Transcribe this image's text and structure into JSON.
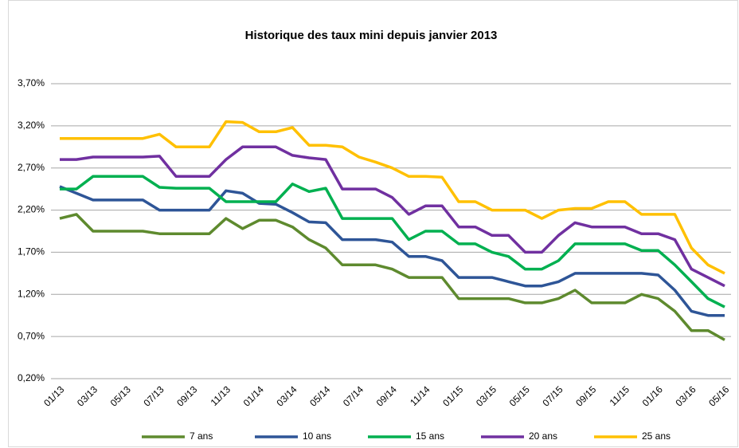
{
  "chart_data": {
    "type": "line",
    "title": "Historique des taux mini depuis janvier 2013",
    "categories": [
      "01/13",
      null,
      "03/13",
      null,
      "05/13",
      null,
      "07/13",
      null,
      "09/13",
      null,
      "11/13",
      null,
      "01/14",
      null,
      "03/14",
      null,
      "05/14",
      null,
      "07/14",
      null,
      "09/14",
      null,
      "11/14",
      null,
      "01/15",
      null,
      "03/15",
      null,
      "05/15",
      null,
      "07/15",
      null,
      "09/15",
      null,
      "11/15",
      null,
      "01/16",
      null,
      "03/16",
      null,
      "05/16"
    ],
    "series": [
      {
        "name": "7 ans",
        "color": "#5e8a2e",
        "values": [
          2.1,
          2.15,
          1.95,
          1.95,
          1.95,
          1.95,
          1.92,
          1.92,
          1.92,
          1.92,
          2.1,
          1.98,
          2.08,
          2.08,
          2.0,
          1.85,
          1.75,
          1.55,
          1.55,
          1.55,
          1.5,
          1.4,
          1.4,
          1.4,
          1.15,
          1.15,
          1.15,
          1.15,
          1.1,
          1.1,
          1.15,
          1.25,
          1.1,
          1.1,
          1.1,
          1.2,
          1.15,
          1.0,
          0.77,
          0.77,
          0.66
        ]
      },
      {
        "name": "10 ans",
        "color": "#2e5597",
        "values": [
          2.48,
          2.4,
          2.32,
          2.32,
          2.32,
          2.32,
          2.2,
          2.2,
          2.2,
          2.2,
          2.43,
          2.4,
          2.28,
          2.27,
          2.17,
          2.06,
          2.05,
          1.85,
          1.85,
          1.85,
          1.82,
          1.65,
          1.65,
          1.6,
          1.4,
          1.4,
          1.4,
          1.35,
          1.3,
          1.3,
          1.35,
          1.45,
          1.45,
          1.45,
          1.45,
          1.45,
          1.43,
          1.25,
          1.0,
          0.95,
          0.95
        ]
      },
      {
        "name": "15 ans",
        "color": "#00b050",
        "values": [
          2.45,
          2.45,
          2.6,
          2.6,
          2.6,
          2.6,
          2.47,
          2.46,
          2.46,
          2.46,
          2.3,
          2.3,
          2.3,
          2.3,
          2.51,
          2.42,
          2.46,
          2.1,
          2.1,
          2.1,
          2.1,
          1.85,
          1.95,
          1.95,
          1.8,
          1.8,
          1.7,
          1.65,
          1.5,
          1.5,
          1.6,
          1.8,
          1.8,
          1.8,
          1.8,
          1.72,
          1.72,
          1.55,
          1.35,
          1.15,
          1.05
        ]
      },
      {
        "name": "20 ans",
        "color": "#7030a0",
        "values": [
          2.8,
          2.8,
          2.83,
          2.83,
          2.83,
          2.83,
          2.84,
          2.6,
          2.6,
          2.6,
          2.8,
          2.95,
          2.95,
          2.95,
          2.85,
          2.82,
          2.8,
          2.45,
          2.45,
          2.45,
          2.35,
          2.15,
          2.25,
          2.25,
          2.0,
          2.0,
          1.9,
          1.9,
          1.7,
          1.7,
          1.9,
          2.05,
          2.0,
          2.0,
          2.0,
          1.92,
          1.92,
          1.85,
          1.5,
          1.4,
          1.3
        ]
      },
      {
        "name": "25 ans",
        "color": "#ffc000",
        "values": [
          3.05,
          3.05,
          3.05,
          3.05,
          3.05,
          3.05,
          3.1,
          2.95,
          2.95,
          2.95,
          3.25,
          3.24,
          3.13,
          3.13,
          3.18,
          2.97,
          2.97,
          2.95,
          2.83,
          2.77,
          2.7,
          2.6,
          2.6,
          2.59,
          2.3,
          2.3,
          2.2,
          2.2,
          2.2,
          2.1,
          2.2,
          2.22,
          2.22,
          2.3,
          2.3,
          2.15,
          2.15,
          2.15,
          1.75,
          1.55,
          1.45
        ]
      }
    ],
    "ylim": [
      0.2,
      3.7
    ],
    "yticks": [
      {
        "value": 0.2,
        "label": "0,20%"
      },
      {
        "value": 0.7,
        "label": "0,70%"
      },
      {
        "value": 1.2,
        "label": "1,20%"
      },
      {
        "value": 1.7,
        "label": "1,70%"
      },
      {
        "value": 2.2,
        "label": "2,20%"
      },
      {
        "value": 2.7,
        "label": "2,70%"
      },
      {
        "value": 3.2,
        "label": "3,20%"
      },
      {
        "value": 3.7,
        "label": "3,70%"
      }
    ],
    "grid": true,
    "legend": "bottom"
  }
}
